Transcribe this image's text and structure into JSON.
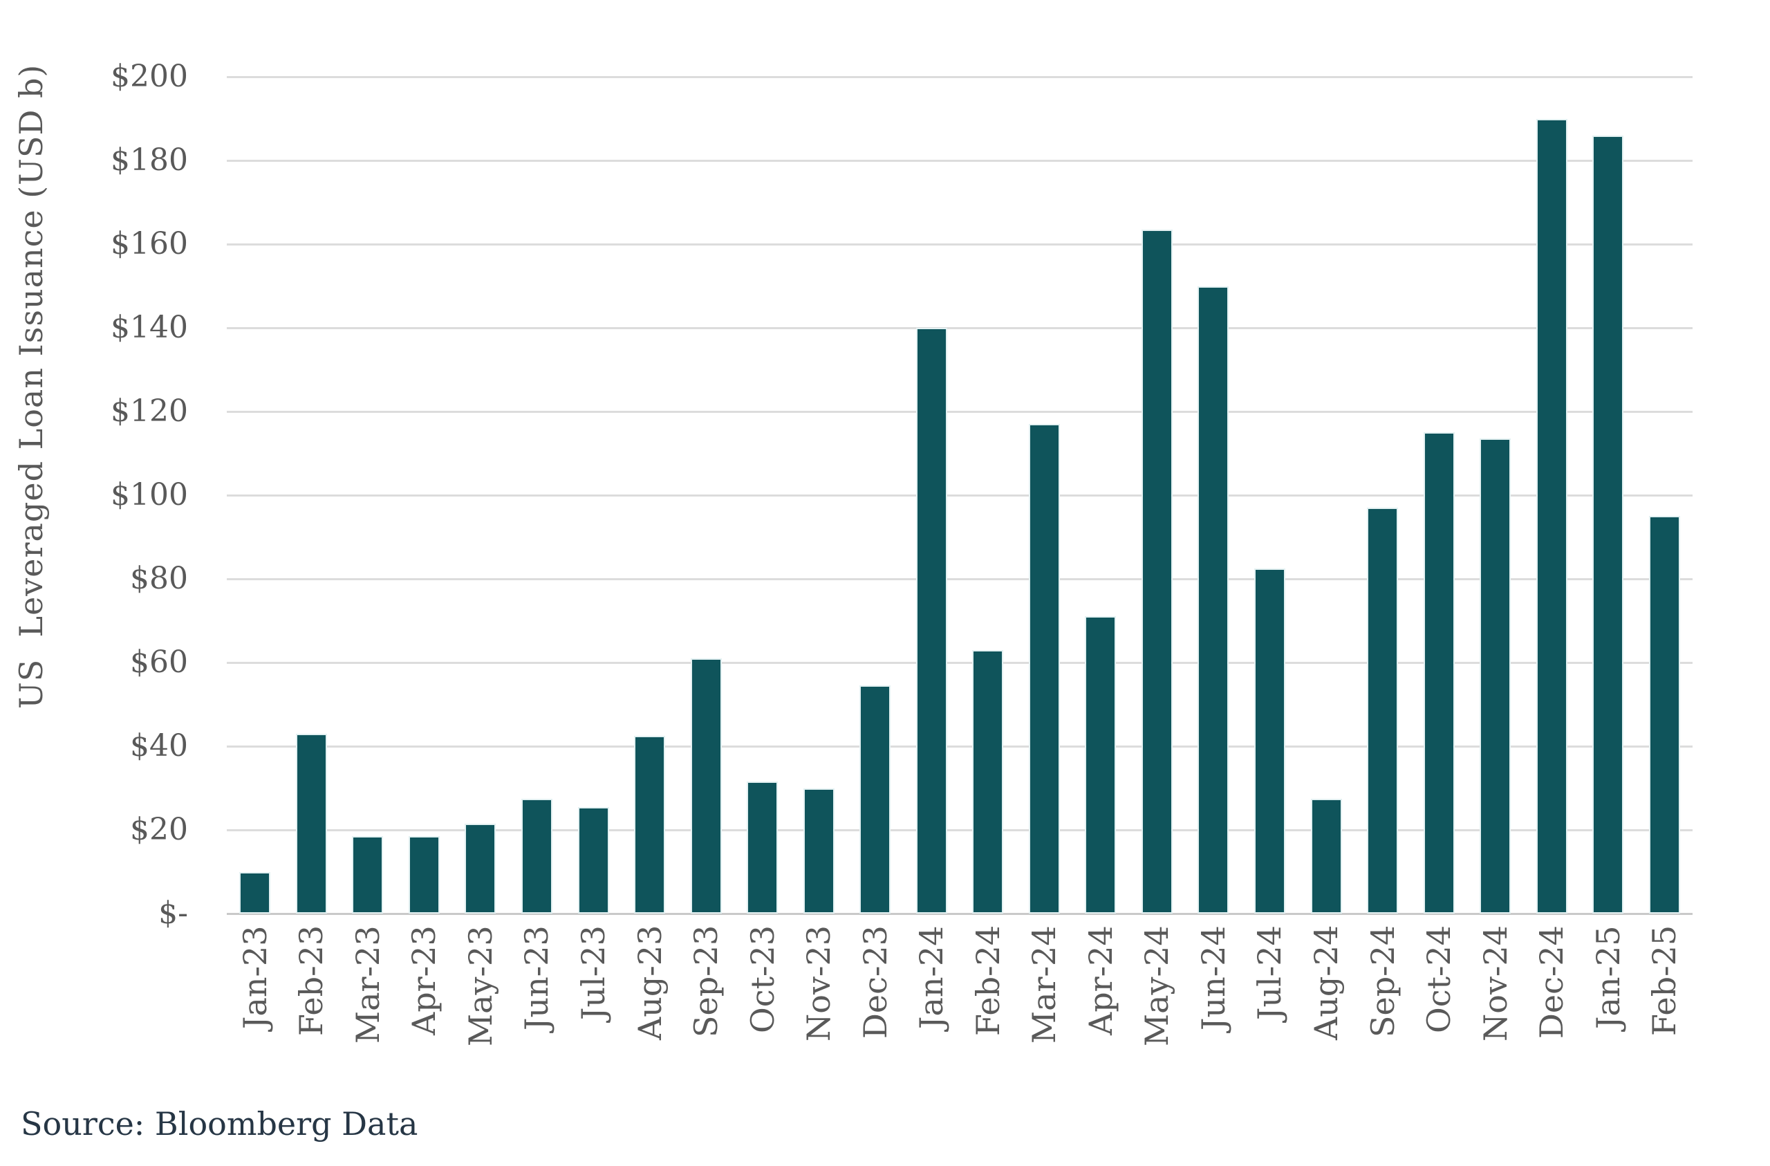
{
  "chart_data": {
    "type": "bar",
    "title": "",
    "categories": [
      "Jan-23",
      "Feb-23",
      "Mar-23",
      "Apr-23",
      "May-23",
      "Jun-23",
      "Jul-23",
      "Aug-23",
      "Sep-23",
      "Oct-23",
      "Nov-23",
      "Dec-23",
      "Jan-24",
      "Feb-24",
      "Mar-24",
      "Apr-24",
      "May-24",
      "Jun-24",
      "Jul-24",
      "Aug-24",
      "Sep-24",
      "Oct-24",
      "Nov-24",
      "Dec-24",
      "Jan-25",
      "Feb-25"
    ],
    "values": [
      10,
      43,
      18.5,
      18.5,
      21.5,
      27.5,
      25.5,
      42.5,
      61,
      31.5,
      30,
      54.5,
      140,
      63,
      117,
      71,
      163.5,
      150,
      82.5,
      27.5,
      97,
      115,
      113.5,
      190,
      186,
      95
    ],
    "xlabel": "",
    "ylabel": "US  Leveraged Loan Issuance (USD b)",
    "ylim": [
      0,
      200
    ],
    "ytick_step": 20,
    "ytick_labels": [
      "$-",
      "$20",
      "$40",
      "$60",
      "$80",
      "$100",
      "$120",
      "$140",
      "$160",
      "$180",
      "$200"
    ],
    "grid": true,
    "legend": false
  },
  "source_note": "Source: Bloomberg Data",
  "colors": {
    "bar": "#0f545b",
    "bar_edge": "#e3f1f2",
    "gridline": "#dcdcdc",
    "axis_line": "#c9c9c9",
    "tick_text": "#595959",
    "source_text": "#263645",
    "background": "#ffffff"
  }
}
